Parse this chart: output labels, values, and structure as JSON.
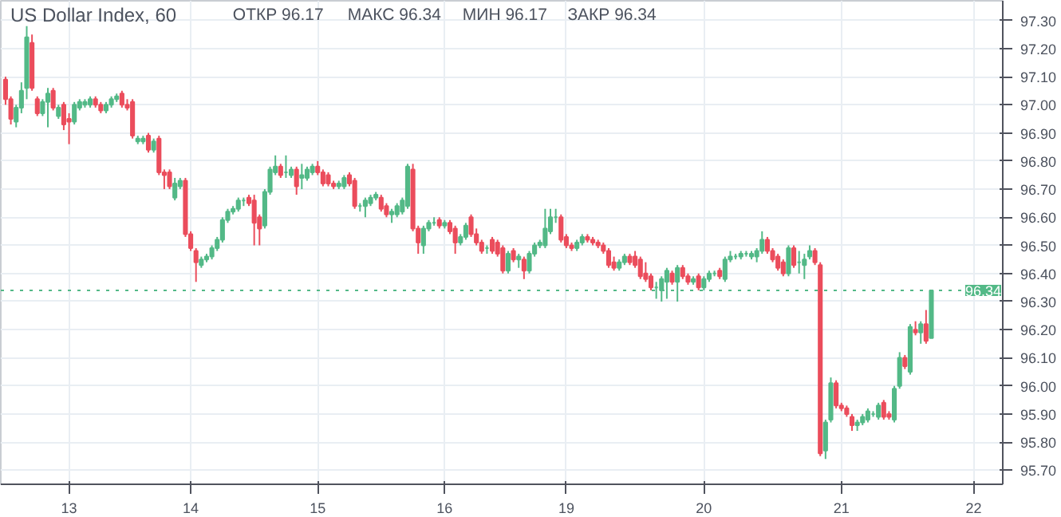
{
  "chart_data": {
    "type": "candlestick",
    "title": "US Dollar Index, 60",
    "annotations": [
      "ОТКР 96.17",
      "МАКС 96.34",
      "МИН 96.17",
      "ЗАКР 96.34"
    ],
    "ohlc": [
      [
        97.09,
        97.1,
        97.0,
        97.02
      ],
      [
        97.02,
        97.03,
        96.93,
        96.95
      ],
      [
        96.94,
        97.0,
        96.92,
        96.99
      ],
      [
        96.99,
        97.08,
        96.97,
        97.05
      ],
      [
        97.06,
        97.28,
        97.02,
        97.24
      ],
      [
        97.22,
        97.25,
        97.05,
        97.06
      ],
      [
        97.02,
        97.03,
        96.96,
        96.97
      ],
      [
        96.97,
        97.02,
        96.96,
        97.01
      ],
      [
        97.01,
        97.06,
        96.92,
        97.04
      ],
      [
        97.05,
        97.06,
        96.98,
        96.99
      ],
      [
        96.96,
        97.0,
        96.95,
        96.99
      ],
      [
        97.0,
        97.01,
        96.91,
        96.93
      ],
      [
        96.95,
        96.97,
        96.86,
        96.94
      ],
      [
        96.94,
        97.01,
        96.93,
        97.0
      ],
      [
        96.99,
        97.02,
        96.98,
        97.01
      ],
      [
        97.0,
        97.02,
        96.99,
        97.01
      ],
      [
        97.0,
        97.03,
        96.99,
        97.02
      ],
      [
        97.02,
        97.03,
        96.99,
        97.0
      ],
      [
        97.0,
        97.01,
        96.97,
        96.98
      ],
      [
        96.98,
        97.01,
        96.97,
        97.0
      ],
      [
        97.0,
        97.03,
        96.99,
        97.02
      ],
      [
        97.02,
        97.04,
        97.01,
        97.03
      ],
      [
        97.04,
        97.05,
        96.99,
        97.0
      ],
      [
        97.0,
        97.02,
        96.98,
        96.99
      ],
      [
        97.01,
        97.02,
        96.88,
        96.89
      ],
      [
        96.87,
        96.89,
        96.86,
        96.88
      ],
      [
        96.87,
        96.89,
        96.86,
        96.88
      ],
      [
        96.89,
        96.9,
        96.83,
        96.84
      ],
      [
        96.84,
        96.88,
        96.83,
        96.87
      ],
      [
        96.88,
        96.89,
        96.75,
        96.76
      ],
      [
        96.76,
        96.77,
        96.7,
        96.75
      ],
      [
        96.76,
        96.77,
        96.7,
        96.71
      ],
      [
        96.67,
        96.74,
        96.66,
        96.72
      ],
      [
        96.71,
        96.74,
        96.7,
        96.73
      ],
      [
        96.73,
        96.74,
        96.53,
        96.54
      ],
      [
        96.54,
        96.55,
        96.48,
        96.49
      ],
      [
        96.48,
        96.49,
        96.37,
        96.44
      ],
      [
        96.43,
        96.46,
        96.42,
        96.45
      ],
      [
        96.45,
        96.47,
        96.44,
        96.46
      ],
      [
        96.46,
        96.5,
        96.45,
        96.49
      ],
      [
        96.49,
        96.53,
        96.48,
        96.52
      ],
      [
        96.52,
        96.6,
        96.51,
        96.59
      ],
      [
        96.59,
        96.63,
        96.58,
        96.62
      ],
      [
        96.62,
        96.64,
        96.61,
        96.63
      ],
      [
        96.63,
        96.67,
        96.62,
        96.66
      ],
      [
        96.66,
        96.67,
        96.64,
        96.66
      ],
      [
        96.67,
        96.68,
        96.64,
        96.65
      ],
      [
        96.66,
        96.68,
        96.5,
        96.58
      ],
      [
        96.6,
        96.61,
        96.5,
        96.56
      ],
      [
        96.57,
        96.7,
        96.56,
        96.69
      ],
      [
        96.69,
        96.78,
        96.68,
        96.77
      ],
      [
        96.76,
        96.82,
        96.75,
        96.78
      ],
      [
        96.78,
        96.79,
        96.74,
        96.75
      ],
      [
        96.76,
        96.82,
        96.74,
        96.76
      ],
      [
        96.75,
        96.78,
        96.74,
        96.77
      ],
      [
        96.77,
        96.78,
        96.68,
        96.71
      ],
      [
        96.74,
        96.79,
        96.7,
        96.75
      ],
      [
        96.74,
        96.78,
        96.73,
        96.77
      ],
      [
        96.76,
        96.79,
        96.75,
        96.78
      ],
      [
        96.78,
        96.8,
        96.75,
        96.76
      ],
      [
        96.76,
        96.77,
        96.71,
        96.72
      ],
      [
        96.75,
        96.76,
        96.71,
        96.72
      ],
      [
        96.72,
        96.73,
        96.7,
        96.71
      ],
      [
        96.71,
        96.73,
        96.7,
        96.72
      ],
      [
        96.71,
        96.75,
        96.7,
        96.74
      ],
      [
        96.75,
        96.76,
        96.71,
        96.72
      ],
      [
        96.73,
        96.74,
        96.63,
        96.64
      ],
      [
        96.64,
        96.65,
        96.62,
        96.64
      ],
      [
        96.64,
        96.67,
        96.6,
        96.66
      ],
      [
        96.65,
        96.68,
        96.64,
        96.67
      ],
      [
        96.67,
        96.69,
        96.66,
        96.68
      ],
      [
        96.67,
        96.68,
        96.62,
        96.63
      ],
      [
        96.64,
        96.65,
        96.6,
        96.61
      ],
      [
        96.61,
        96.63,
        96.58,
        96.62
      ],
      [
        96.61,
        96.65,
        96.6,
        96.64
      ],
      [
        96.62,
        96.67,
        96.61,
        96.66
      ],
      [
        96.64,
        96.79,
        96.63,
        96.78
      ],
      [
        96.77,
        96.79,
        96.55,
        96.56
      ],
      [
        96.56,
        96.57,
        96.47,
        96.51
      ],
      [
        96.5,
        96.57,
        96.47,
        96.56
      ],
      [
        96.56,
        96.59,
        96.55,
        96.58
      ],
      [
        96.58,
        96.6,
        96.57,
        96.58
      ],
      [
        96.59,
        96.6,
        96.56,
        96.57
      ],
      [
        96.57,
        96.59,
        96.56,
        96.58
      ],
      [
        96.58,
        96.59,
        96.54,
        96.55
      ],
      [
        96.56,
        96.57,
        96.47,
        96.51
      ],
      [
        96.51,
        96.54,
        96.5,
        96.53
      ],
      [
        96.53,
        96.58,
        96.52,
        96.57
      ],
      [
        96.6,
        96.61,
        96.53,
        96.54
      ],
      [
        96.54,
        96.56,
        96.5,
        96.51
      ],
      [
        96.51,
        96.52,
        96.47,
        96.48
      ],
      [
        96.49,
        96.5,
        96.47,
        96.49
      ],
      [
        96.52,
        96.53,
        96.47,
        96.48
      ],
      [
        96.51,
        96.52,
        96.46,
        96.47
      ],
      [
        96.49,
        96.5,
        96.4,
        96.41
      ],
      [
        96.41,
        96.48,
        96.4,
        96.47
      ],
      [
        96.48,
        96.49,
        96.44,
        96.45
      ],
      [
        96.45,
        96.47,
        96.42,
        96.46
      ],
      [
        96.45,
        96.46,
        96.38,
        96.41
      ],
      [
        96.41,
        96.48,
        96.4,
        96.47
      ],
      [
        96.47,
        96.51,
        96.46,
        96.5
      ],
      [
        96.5,
        96.52,
        96.49,
        96.51
      ],
      [
        96.5,
        96.63,
        96.49,
        96.56
      ],
      [
        96.55,
        96.63,
        96.54,
        96.6
      ],
      [
        96.6,
        96.63,
        96.58,
        96.6
      ],
      [
        96.6,
        96.61,
        96.51,
        96.52
      ],
      [
        96.53,
        96.54,
        96.49,
        96.5
      ],
      [
        96.5,
        96.51,
        96.48,
        96.49
      ],
      [
        96.49,
        96.52,
        96.48,
        96.51
      ],
      [
        96.51,
        96.54,
        96.5,
        96.53
      ],
      [
        96.53,
        96.54,
        96.51,
        96.52
      ],
      [
        96.52,
        96.53,
        96.5,
        96.51
      ],
      [
        96.51,
        96.52,
        96.49,
        96.5
      ],
      [
        96.5,
        96.51,
        96.47,
        96.48
      ],
      [
        96.48,
        96.49,
        96.42,
        96.43
      ],
      [
        96.44,
        96.46,
        96.41,
        96.42
      ],
      [
        96.42,
        96.45,
        96.41,
        96.44
      ],
      [
        96.44,
        96.47,
        96.43,
        96.46
      ],
      [
        96.46,
        96.47,
        96.43,
        96.44
      ],
      [
        96.46,
        96.48,
        96.42,
        96.43
      ],
      [
        96.45,
        96.46,
        96.38,
        96.39
      ],
      [
        96.4,
        96.44,
        96.37,
        96.38
      ],
      [
        96.39,
        96.4,
        96.34,
        96.35
      ],
      [
        96.35,
        96.37,
        96.31,
        96.35
      ],
      [
        96.34,
        96.39,
        96.3,
        96.38
      ],
      [
        96.37,
        96.42,
        96.31,
        96.41
      ],
      [
        96.4,
        96.41,
        96.36,
        96.37
      ],
      [
        96.37,
        96.43,
        96.3,
        96.42
      ],
      [
        96.42,
        96.43,
        96.38,
        96.39
      ],
      [
        96.39,
        96.4,
        96.36,
        96.37
      ],
      [
        96.37,
        96.39,
        96.36,
        96.38
      ],
      [
        96.39,
        96.4,
        96.34,
        96.35
      ],
      [
        96.35,
        96.39,
        96.34,
        96.38
      ],
      [
        96.38,
        96.41,
        96.37,
        96.4
      ],
      [
        96.4,
        96.41,
        96.39,
        96.4
      ],
      [
        96.41,
        96.42,
        96.38,
        96.39
      ],
      [
        96.38,
        96.46,
        96.37,
        96.45
      ],
      [
        96.45,
        96.48,
        96.44,
        96.46
      ],
      [
        96.46,
        96.47,
        96.45,
        96.46
      ],
      [
        96.46,
        96.48,
        96.45,
        96.47
      ],
      [
        96.47,
        96.48,
        96.46,
        96.47
      ],
      [
        96.46,
        96.48,
        96.45,
        96.47
      ],
      [
        96.46,
        96.49,
        96.44,
        96.48
      ],
      [
        96.48,
        96.55,
        96.47,
        96.52
      ],
      [
        96.52,
        96.53,
        96.47,
        96.48
      ],
      [
        96.48,
        96.49,
        96.44,
        96.45
      ],
      [
        96.46,
        96.47,
        96.41,
        96.42
      ],
      [
        96.44,
        96.45,
        96.39,
        96.4
      ],
      [
        96.4,
        96.5,
        96.39,
        96.49
      ],
      [
        96.49,
        96.5,
        96.42,
        96.43
      ],
      [
        96.44,
        96.48,
        96.4,
        96.44
      ],
      [
        96.43,
        96.47,
        96.38,
        96.45
      ],
      [
        96.46,
        96.5,
        96.45,
        96.48
      ],
      [
        96.48,
        96.49,
        96.43,
        96.44
      ],
      [
        96.43,
        96.44,
        95.75,
        95.76
      ],
      [
        95.77,
        95.88,
        95.74,
        95.87
      ],
      [
        95.88,
        96.03,
        95.87,
        96.01
      ],
      [
        96.01,
        96.02,
        95.92,
        95.93
      ],
      [
        95.93,
        95.94,
        95.91,
        95.92
      ],
      [
        95.92,
        95.93,
        95.89,
        95.9
      ],
      [
        95.89,
        95.9,
        95.84,
        95.86
      ],
      [
        95.86,
        95.88,
        95.84,
        95.87
      ],
      [
        95.87,
        95.9,
        95.86,
        95.89
      ],
      [
        95.88,
        95.92,
        95.87,
        95.91
      ],
      [
        95.9,
        95.91,
        95.89,
        95.9
      ],
      [
        95.89,
        95.94,
        95.88,
        95.93
      ],
      [
        95.94,
        95.95,
        95.88,
        95.89
      ],
      [
        95.9,
        95.91,
        95.88,
        95.89
      ],
      [
        95.88,
        96.0,
        95.87,
        95.99
      ],
      [
        96.0,
        96.12,
        95.99,
        96.1
      ],
      [
        96.1,
        96.11,
        96.06,
        96.07
      ],
      [
        96.05,
        96.22,
        96.04,
        96.21
      ],
      [
        96.2,
        96.23,
        96.18,
        96.19
      ],
      [
        96.19,
        96.23,
        96.15,
        96.22
      ],
      [
        96.22,
        96.27,
        96.15,
        96.16
      ],
      [
        96.17,
        96.34,
        96.17,
        96.34
      ],
      null,
      null,
      null,
      null,
      null,
      null,
      null,
      null,
      null,
      null,
      null,
      null,
      null
    ],
    "colors": [
      "#eb4d5c",
      "#eb4d5c",
      "#53b987",
      "#53b987",
      "#53b987",
      "#eb4d5c",
      "#eb4d5c",
      "#53b987",
      "#53b987",
      "#eb4d5c",
      "#53b987",
      "#eb4d5c",
      "#eb4d5c",
      "#53b987",
      "#53b987",
      "#53b987",
      "#53b987",
      "#eb4d5c",
      "#eb4d5c",
      "#53b987",
      "#53b987",
      "#53b987",
      "#eb4d5c",
      "#eb4d5c",
      "#eb4d5c",
      "#53b987",
      "#53b987",
      "#eb4d5c",
      "#53b987",
      "#eb4d5c",
      "#eb4d5c",
      "#eb4d5c",
      "#53b987",
      "#53b987",
      "#eb4d5c",
      "#eb4d5c",
      "#eb4d5c",
      "#53b987",
      "#53b987",
      "#53b987",
      "#53b987",
      "#53b987",
      "#53b987",
      "#53b987",
      "#53b987",
      "#53b987",
      "#eb4d5c",
      "#eb4d5c",
      "#eb4d5c",
      "#53b987",
      "#53b987",
      "#53b987",
      "#eb4d5c",
      "#53b987",
      "#53b987",
      "#eb4d5c",
      "#53b987",
      "#53b987",
      "#53b987",
      "#eb4d5c",
      "#eb4d5c",
      "#eb4d5c",
      "#eb4d5c",
      "#53b987",
      "#53b987",
      "#eb4d5c",
      "#eb4d5c",
      "#53b987",
      "#53b987",
      "#53b987",
      "#53b987",
      "#eb4d5c",
      "#eb4d5c",
      "#53b987",
      "#53b987",
      "#53b987",
      "#53b987",
      "#eb4d5c",
      "#eb4d5c",
      "#53b987",
      "#53b987",
      "#53b987",
      "#eb4d5c",
      "#53b987",
      "#eb4d5c",
      "#eb4d5c",
      "#53b987",
      "#53b987",
      "#eb4d5c",
      "#eb4d5c",
      "#eb4d5c",
      "#53b987",
      "#eb4d5c",
      "#eb4d5c",
      "#eb4d5c",
      "#53b987",
      "#eb4d5c",
      "#53b987",
      "#eb4d5c",
      "#53b987",
      "#53b987",
      "#53b987",
      "#53b987",
      "#53b987",
      "#53b987",
      "#eb4d5c",
      "#eb4d5c",
      "#eb4d5c",
      "#53b987",
      "#53b987",
      "#eb4d5c",
      "#eb4d5c",
      "#eb4d5c",
      "#eb4d5c",
      "#eb4d5c",
      "#eb4d5c",
      "#53b987",
      "#53b987",
      "#eb4d5c",
      "#eb4d5c",
      "#eb4d5c",
      "#eb4d5c",
      "#eb4d5c",
      "#53b987",
      "#53b987",
      "#53b987",
      "#eb4d5c",
      "#53b987",
      "#eb4d5c",
      "#eb4d5c",
      "#53b987",
      "#eb4d5c",
      "#53b987",
      "#53b987",
      "#53b987",
      "#eb4d5c",
      "#53b987",
      "#53b987",
      "#53b987",
      "#53b987",
      "#53b987",
      "#53b987",
      "#53b987",
      "#53b987",
      "#eb4d5c",
      "#eb4d5c",
      "#eb4d5c",
      "#eb4d5c",
      "#53b987",
      "#eb4d5c",
      "#53b987",
      "#53b987",
      "#53b987",
      "#eb4d5c",
      "#eb4d5c",
      "#53b987",
      "#53b987",
      "#eb4d5c",
      "#eb4d5c",
      "#eb4d5c",
      "#eb4d5c",
      "#53b987",
      "#53b987",
      "#53b987",
      "#53b987",
      "#53b987",
      "#eb4d5c",
      "#eb4d5c",
      "#53b987",
      "#53b987",
      "#eb4d5c",
      "#53b987",
      "#eb4d5c",
      "#53b987",
      "#eb4d5c",
      "#53b987",
      null,
      null,
      null,
      null,
      null,
      null,
      null,
      null,
      null,
      null,
      null,
      null,
      null
    ],
    "categories": [
      null,
      null,
      null,
      null,
      null,
      null,
      null,
      null,
      null,
      null,
      null,
      null,
      "13",
      null,
      null,
      null,
      null,
      null,
      null,
      null,
      null,
      null,
      null,
      null,
      null,
      null,
      null,
      null,
      null,
      null,
      null,
      null,
      null,
      null,
      null,
      "14",
      null,
      null,
      null,
      null,
      null,
      null,
      null,
      null,
      null,
      null,
      null,
      null,
      null,
      null,
      null,
      null,
      null,
      null,
      null,
      null,
      null,
      null,
      null,
      "15",
      null,
      null,
      null,
      null,
      null,
      null,
      null,
      null,
      null,
      null,
      null,
      null,
      null,
      null,
      null,
      null,
      null,
      null,
      null,
      null,
      null,
      null,
      null,
      "16",
      null,
      null,
      null,
      null,
      null,
      null,
      null,
      null,
      null,
      null,
      null,
      null,
      null,
      null,
      null,
      null,
      null,
      null,
      null,
      null,
      null,
      null,
      "19",
      null,
      null,
      null,
      null,
      null,
      null,
      null,
      null,
      null,
      null,
      null,
      null,
      null,
      null,
      null,
      null,
      null,
      null,
      null,
      null,
      null,
      null,
      null,
      null,
      null,
      "20",
      null,
      null,
      null,
      null,
      null,
      null,
      null,
      null,
      null,
      null,
      null,
      null,
      null,
      null,
      null,
      null,
      null,
      null,
      null,
      null,
      null,
      null,
      null,
      null,
      null,
      "21",
      null,
      null,
      null,
      null,
      null,
      null,
      null,
      null,
      null,
      null,
      null,
      null,
      null,
      null,
      null,
      null,
      null,
      null,
      null,
      null,
      null,
      null,
      null,
      null,
      "22",
      null,
      null,
      null,
      null,
      null
    ],
    "ylim": [
      95.65,
      97.37
    ],
    "yticks": [
      {
        "value": 95.7,
        "label": "95.70"
      },
      {
        "value": 95.8,
        "label": "95.80"
      },
      {
        "value": 95.9,
        "label": "95.90"
      },
      {
        "value": 96.0,
        "label": "96.00"
      },
      {
        "value": 96.1,
        "label": "96.10"
      },
      {
        "value": 96.2,
        "label": "96.20"
      },
      {
        "value": 96.3,
        "label": "96.30"
      },
      {
        "value": 96.4,
        "label": "96.40"
      },
      {
        "value": 96.5,
        "label": "96.50"
      },
      {
        "value": 96.6,
        "label": "96.60"
      },
      {
        "value": 96.7,
        "label": "96.70"
      },
      {
        "value": 96.8,
        "label": "96.80"
      },
      {
        "value": 96.9,
        "label": "96.90"
      },
      {
        "value": 97.0,
        "label": "97.00"
      },
      {
        "value": 97.1,
        "label": "97.10"
      },
      {
        "value": 97.2,
        "label": "97.20"
      },
      {
        "value": 97.3,
        "label": "97.30"
      }
    ],
    "ref_lines": [
      {
        "axis": "y",
        "value": 96.34,
        "label": "96.34",
        "color": "#53b987",
        "line_style": "dotted"
      }
    ],
    "grid": true
  }
}
